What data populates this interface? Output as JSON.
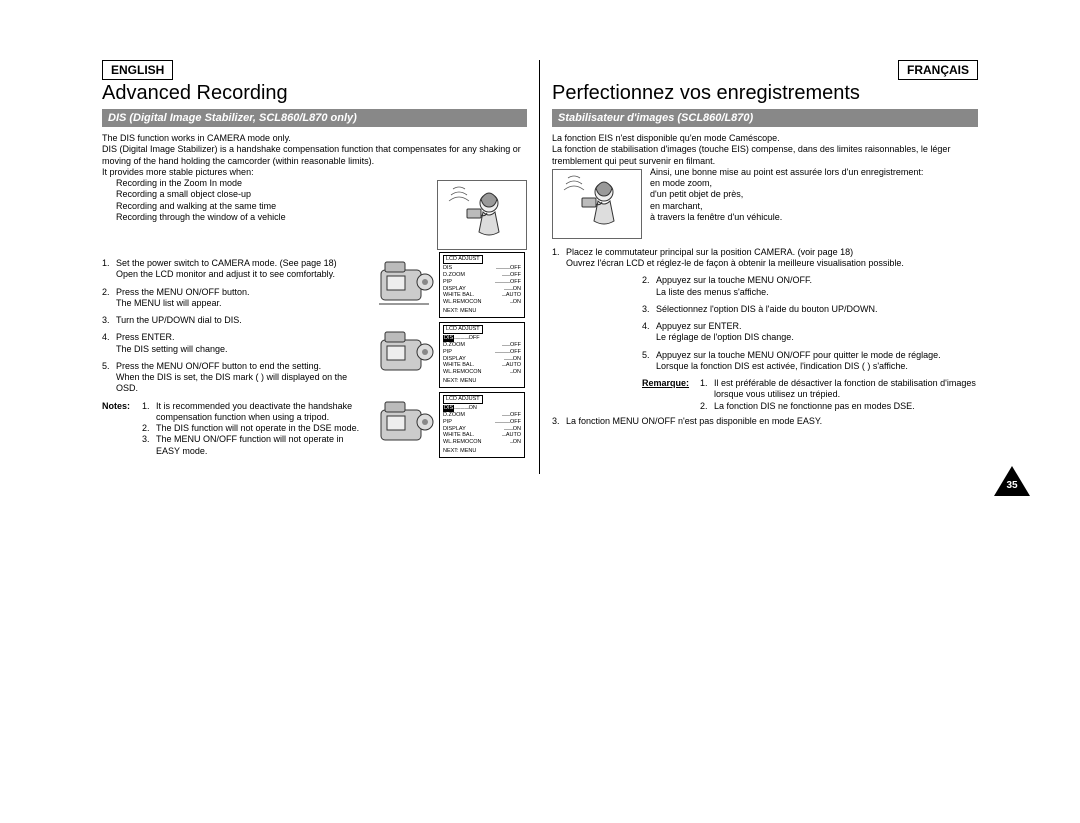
{
  "left": {
    "lang": "ENGLISH",
    "heading": "Advanced Recording",
    "subhead": "DIS (Digital Image Stabilizer, SCL860/L870 only)",
    "intro": [
      "The DIS function works in CAMERA mode only.",
      "DIS (Digital Image Stabilizer) is a handshake compensation function that compensates for any shaking or moving of the hand holding the camcorder (within reasonable limits).",
      "It provides more stable pictures when:"
    ],
    "bullets": [
      "Recording in the Zoom In mode",
      "Recording a small object close-up",
      "Recording and walking at the same time",
      "Recording through the window of a vehicle"
    ],
    "steps": [
      {
        "n": "1.",
        "t": "Set the power switch to CAMERA mode. (See page 18)\nOpen the LCD monitor and adjust it to see comfortably."
      },
      {
        "n": "2.",
        "t": "Press the MENU ON/OFF button.\nThe MENU list will appear."
      },
      {
        "n": "3.",
        "t": "Turn the UP/DOWN dial to DIS."
      },
      {
        "n": "4.",
        "t": "Press ENTER.\nThe DIS setting will change."
      },
      {
        "n": "5.",
        "t": "Press the MENU ON/OFF button to end the setting.\nWhen the DIS is set, the DIS mark (  ) will displayed on the OSD."
      }
    ],
    "notes_label": "Notes:",
    "notes": [
      {
        "n": "1.",
        "t": "It is recommended you deactivate the handshake compensation function when using a tripod."
      },
      {
        "n": "2.",
        "t": "The DIS function will not operate in the DSE mode."
      },
      {
        "n": "3.",
        "t": "The MENU ON/OFF function will not operate in EASY mode."
      }
    ]
  },
  "right": {
    "lang": "FRANÇAIS",
    "heading": "Perfectionnez vos enregistrements",
    "subhead": "Stabilisateur d'images (SCL860/L870)",
    "intro": [
      "La fonction EIS n'est disponible qu'en mode Caméscope.",
      "La fonction de stabilisation d'images (touche EIS) compense, dans des limites raisonnables, le léger tremblement qui peut survenir en filmant."
    ],
    "benefit_lead": "Ainsi, une bonne mise au point est assurée lors d'un enregistrement:",
    "benefit_bullets": [
      "en mode zoom,",
      "d'un petit objet de près,",
      "en marchant,",
      "à travers la fenêtre d'un véhicule."
    ],
    "steps": [
      {
        "n": "1.",
        "t": "Placez le commutateur principal sur la position CAMERA. (voir page 18)\nOuvrez l'écran LCD et réglez-le de façon à obtenir la meilleure visualisation possible."
      },
      {
        "n": "2.",
        "t": "Appuyez sur la touche MENU ON/OFF.\nLa liste des menus s'affiche."
      },
      {
        "n": "3.",
        "t": "Sélectionnez l'option DIS à l'aide du bouton UP/DOWN."
      },
      {
        "n": "4.",
        "t": "Appuyez sur ENTER.\nLe réglage de l'option DIS change."
      },
      {
        "n": "5.",
        "t": "Appuyez sur la touche MENU ON/OFF pour quitter le mode de réglage.\nLorsque la fonction DIS est activée, l'indication DIS (  ) s'affiche."
      }
    ],
    "remarque_label": "Remarque:",
    "remarques": [
      {
        "n": "1.",
        "t": "Il est préférable de désactiver la fonction de stabilisation d'images lorsque vous utilisez un trépied."
      },
      {
        "n": "2.",
        "t": "La fonction DIS ne fonctionne pas en modes DSE."
      }
    ],
    "footer_note": {
      "n": "3.",
      "t": "La fonction MENU ON/OFF n'est pas disponible en mode EASY."
    }
  },
  "menu": {
    "title": "LCD ADJUST",
    "rows": [
      {
        "k": "DIS",
        "v": "OFF"
      },
      {
        "k": "D.ZOOM",
        "v": "OFF"
      },
      {
        "k": "PIP",
        "v": "OFF"
      },
      {
        "k": "DISPLAY",
        "v": "ON"
      },
      {
        "k": "WHITE BAL.",
        "v": "AUTO"
      },
      {
        "k": "WL.REMOCON",
        "v": "ON"
      }
    ],
    "next": "NEXT: MENU",
    "dis_on": "ON"
  },
  "page_number": "35",
  "colors": {
    "subhead_bg": "#888888",
    "subhead_fg": "#ffffff",
    "text": "#000000",
    "border": "#000000"
  }
}
